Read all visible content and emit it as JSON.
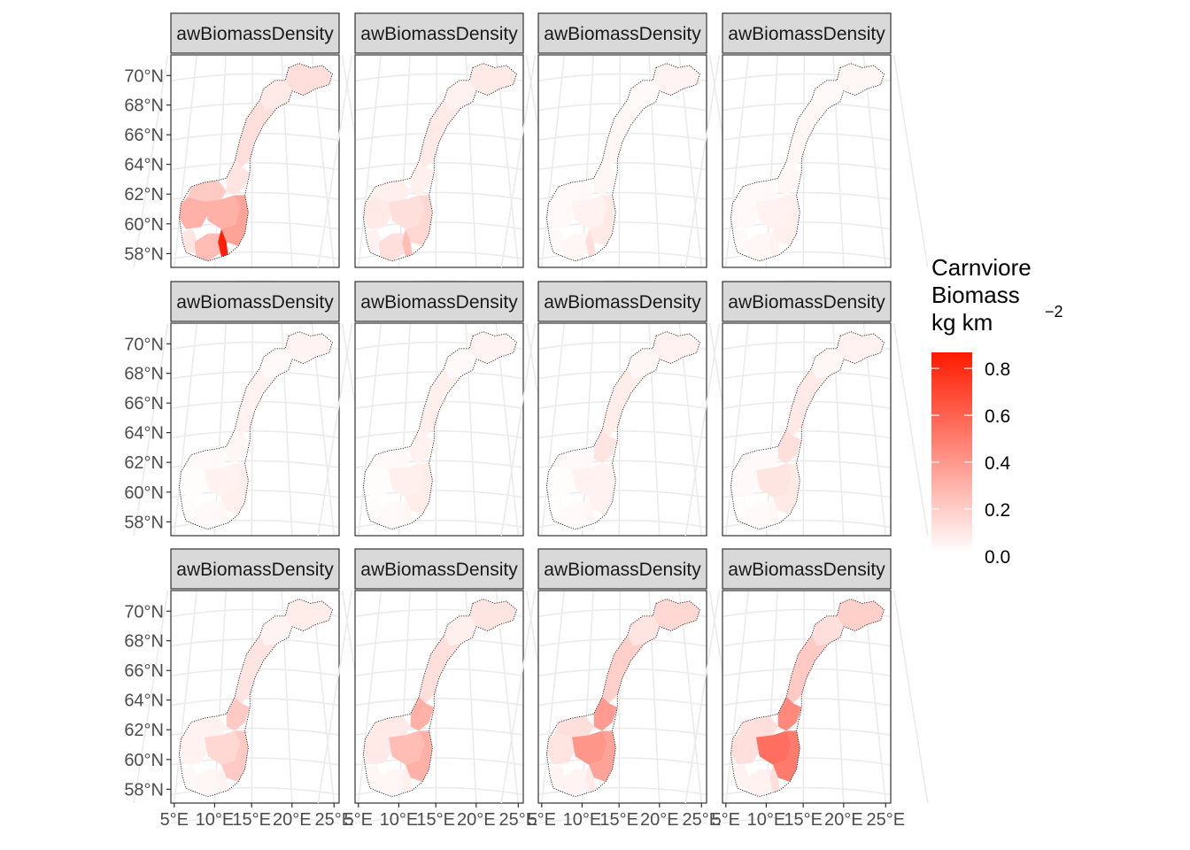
{
  "chart_data": {
    "type": "heatmap",
    "facet_layout": {
      "rows": 3,
      "cols": 4
    },
    "facets": [
      {
        "strip": "awBiomassDensity",
        "regions": {
          "finnmark": 0.12,
          "troms": 0.08,
          "nordland": 0.12,
          "trondelag": 0.1,
          "more": 0.2,
          "vestland": 0.3,
          "rogaland": 0.1,
          "innlandet": 0.3,
          "viken": 0.35,
          "agder": 0.25,
          "vestfold": 0.85
        }
      },
      {
        "strip": "awBiomassDensity",
        "regions": {
          "finnmark": 0.08,
          "troms": 0.05,
          "nordland": 0.08,
          "trondelag": 0.06,
          "more": 0.06,
          "vestland": 0.08,
          "rogaland": 0.05,
          "innlandet": 0.12,
          "viken": 0.15,
          "agder": 0.12,
          "vestfold": 0.25
        }
      },
      {
        "strip": "awBiomassDensity",
        "regions": {
          "finnmark": 0.04,
          "troms": 0.02,
          "nordland": 0.03,
          "trondelag": 0.03,
          "more": 0.02,
          "vestland": 0.02,
          "rogaland": 0.02,
          "innlandet": 0.05,
          "viken": 0.08,
          "agder": 0.03,
          "vestfold": 0.12
        }
      },
      {
        "strip": "awBiomassDensity",
        "regions": {
          "finnmark": 0.03,
          "troms": 0.02,
          "nordland": 0.03,
          "trondelag": 0.03,
          "more": 0.02,
          "vestland": 0.02,
          "rogaland": 0.02,
          "innlandet": 0.05,
          "viken": 0.06,
          "agder": 0.03,
          "vestfold": 0.05
        }
      },
      {
        "strip": "awBiomassDensity",
        "regions": {
          "finnmark": 0.04,
          "troms": 0.02,
          "nordland": 0.05,
          "trondelag": 0.03,
          "more": 0.02,
          "vestland": 0.01,
          "rogaland": 0.01,
          "innlandet": 0.05,
          "viken": 0.06,
          "agder": 0.02,
          "vestfold": 0.03
        }
      },
      {
        "strip": "awBiomassDensity",
        "regions": {
          "finnmark": 0.04,
          "troms": 0.02,
          "nordland": 0.06,
          "trondelag": 0.05,
          "more": 0.02,
          "vestland": 0.01,
          "rogaland": 0.01,
          "innlandet": 0.06,
          "viken": 0.07,
          "agder": 0.02,
          "vestfold": 0.03
        }
      },
      {
        "strip": "awBiomassDensity",
        "regions": {
          "finnmark": 0.05,
          "troms": 0.03,
          "nordland": 0.07,
          "trondelag": 0.1,
          "more": 0.02,
          "vestland": 0.01,
          "rogaland": 0.01,
          "innlandet": 0.05,
          "viken": 0.05,
          "agder": 0.02,
          "vestfold": 0.03
        }
      },
      {
        "strip": "awBiomassDensity",
        "regions": {
          "finnmark": 0.05,
          "troms": 0.03,
          "nordland": 0.08,
          "trondelag": 0.12,
          "more": 0.02,
          "vestland": 0.02,
          "rogaland": 0.01,
          "innlandet": 0.1,
          "viken": 0.08,
          "agder": 0.02,
          "vestfold": 0.03
        }
      },
      {
        "strip": "awBiomassDensity",
        "regions": {
          "finnmark": 0.07,
          "troms": 0.04,
          "nordland": 0.1,
          "trondelag": 0.2,
          "more": 0.05,
          "vestland": 0.05,
          "rogaland": 0.02,
          "innlandet": 0.15,
          "viken": 0.2,
          "agder": 0.03,
          "vestfold": 0.05
        }
      },
      {
        "strip": "awBiomassDensity",
        "regions": {
          "finnmark": 0.1,
          "troms": 0.06,
          "nordland": 0.12,
          "trondelag": 0.3,
          "more": 0.08,
          "vestland": 0.08,
          "rogaland": 0.03,
          "innlandet": 0.25,
          "viken": 0.3,
          "agder": 0.03,
          "vestfold": 0.06
        }
      },
      {
        "strip": "awBiomassDensity",
        "regions": {
          "finnmark": 0.15,
          "troms": 0.1,
          "nordland": 0.18,
          "trondelag": 0.38,
          "more": 0.12,
          "vestland": 0.1,
          "rogaland": 0.04,
          "innlandet": 0.4,
          "viken": 0.35,
          "agder": 0.04,
          "vestfold": 0.08
        }
      },
      {
        "strip": "awBiomassDensity",
        "regions": {
          "finnmark": 0.18,
          "troms": 0.12,
          "nordland": 0.2,
          "trondelag": 0.45,
          "more": 0.12,
          "vestland": 0.12,
          "rogaland": 0.05,
          "innlandet": 0.55,
          "viken": 0.5,
          "agder": 0.05,
          "vestfold": 0.12
        }
      }
    ],
    "y_ticks": [
      "70°N",
      "68°N",
      "66°N",
      "64°N",
      "62°N",
      "60°N",
      "58°N"
    ],
    "x_ticks": [
      "5°E",
      "10°E",
      "15°E",
      "20°E",
      "25°E"
    ],
    "legend": {
      "title_lines": [
        "Carnviore",
        "Biomass",
        "kg km"
      ],
      "title_superscript": "−2",
      "ticks": [
        0.8,
        0.6,
        0.4,
        0.2,
        0.0
      ],
      "tick_labels": [
        "0.8",
        "0.6",
        "0.4",
        "0.2",
        "0.0"
      ],
      "range": [
        0,
        0.87
      ],
      "colors": {
        "low": "#ffffff",
        "high": "#ff1a00"
      }
    },
    "grid": true,
    "legend_position": "right"
  },
  "colors": {
    "strip_fill": "#d9d9d9",
    "panel_border": "#333333",
    "grid": "#ebebeb",
    "coast": "#222222",
    "tick_text": "#4d4d4d"
  }
}
